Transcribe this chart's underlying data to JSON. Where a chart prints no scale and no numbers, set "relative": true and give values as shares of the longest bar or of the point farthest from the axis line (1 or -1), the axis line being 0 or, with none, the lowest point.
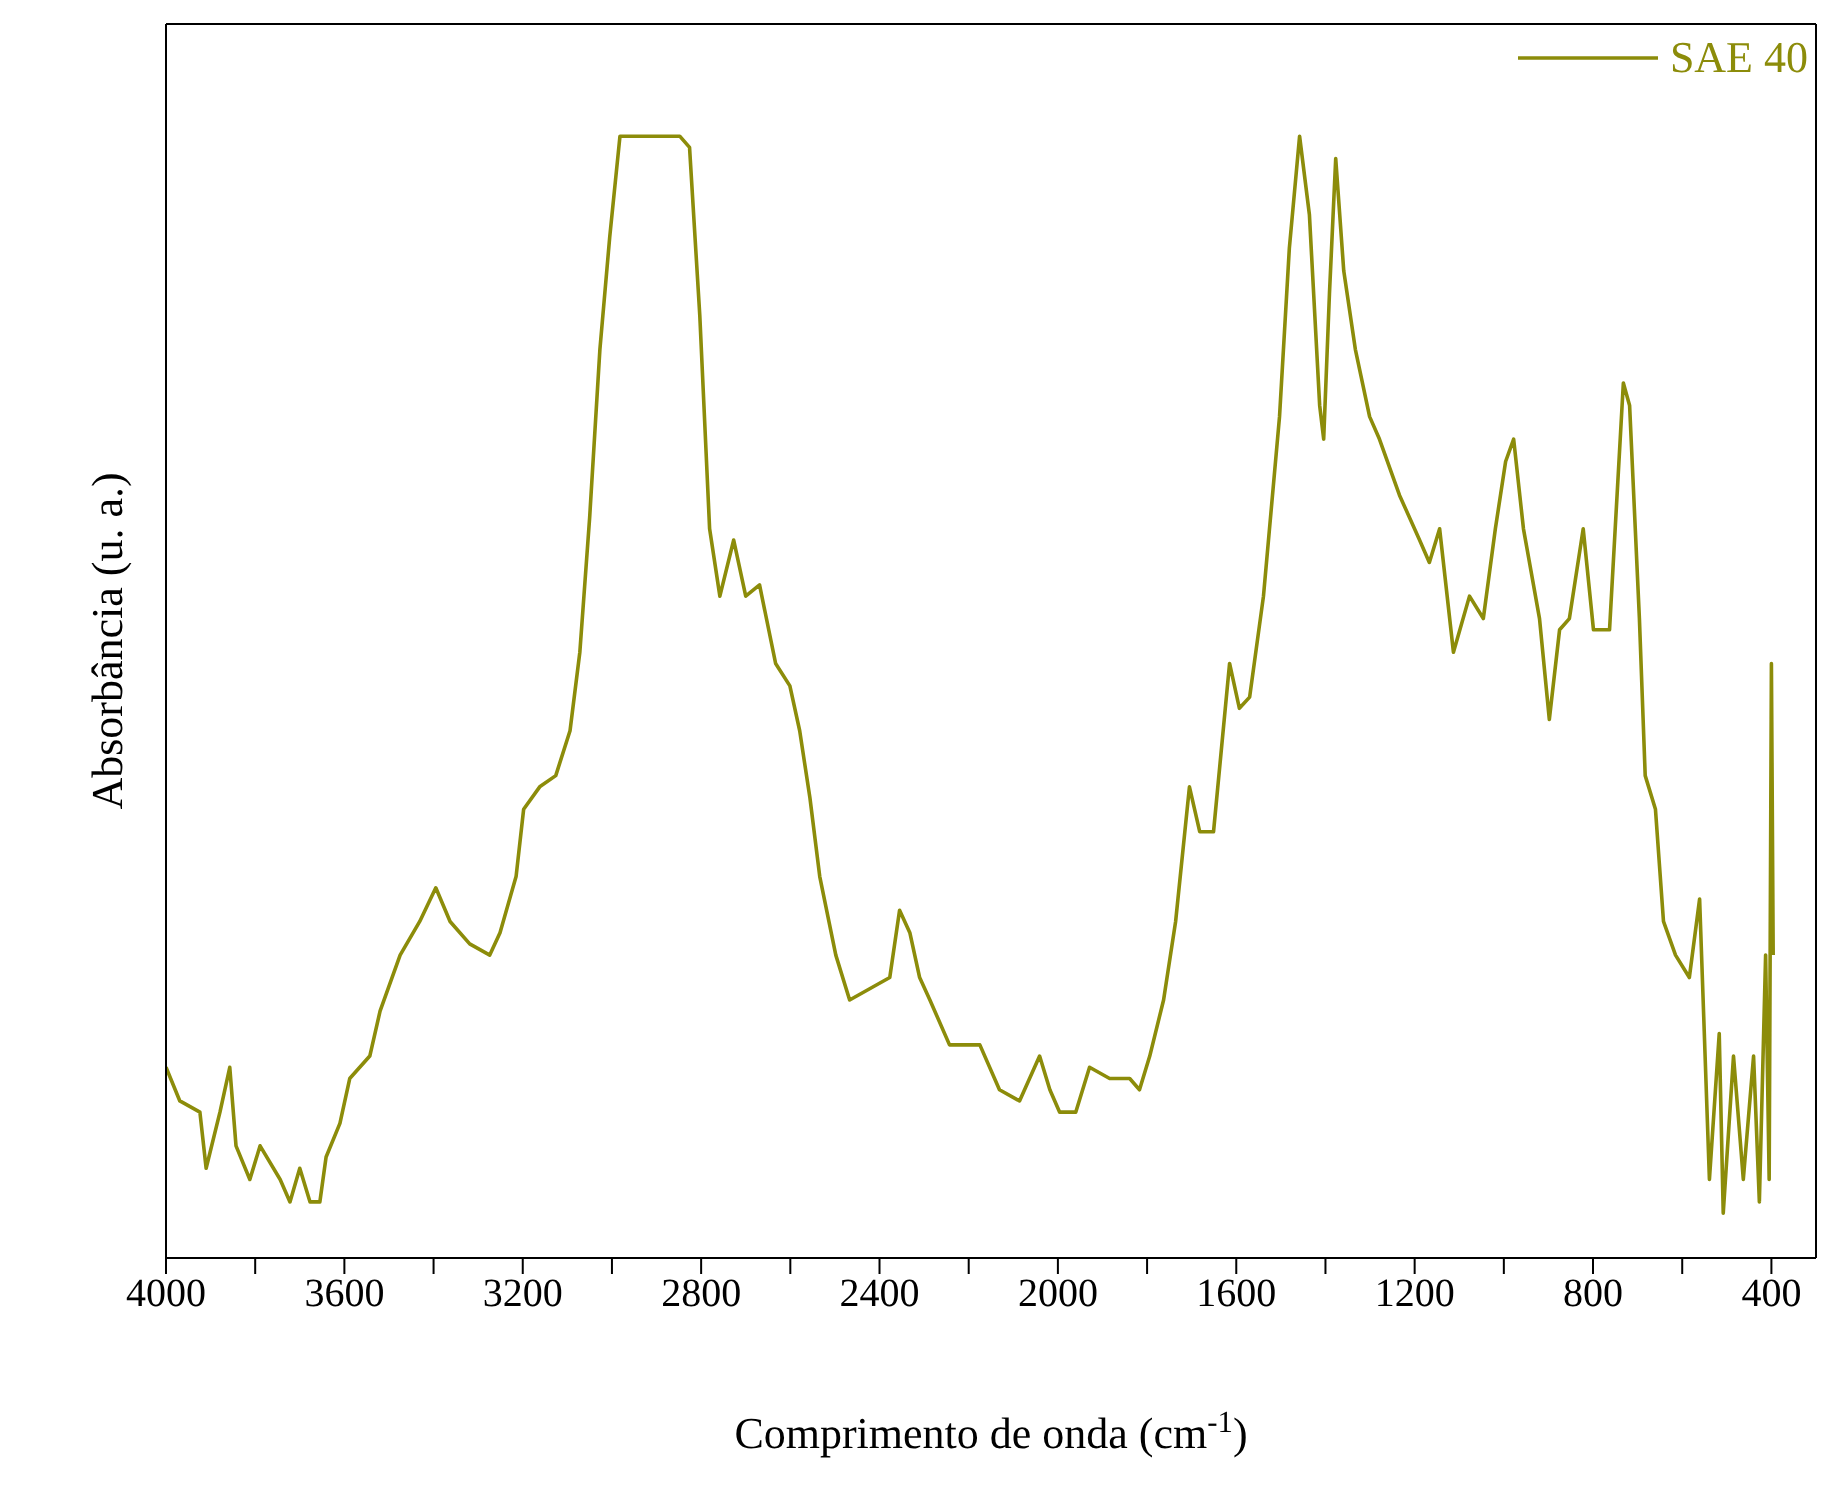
{
  "chart_data": {
    "type": "line",
    "relative": true,
    "xlabel": "Comprimento de onda (cm$^{-1}$)",
    "ylabel": "Absorbância (u. a.)",
    "xlim": [
      4000,
      300
    ],
    "xticks": [
      4000,
      {
        "value": 3800,
        "label": null
      },
      3600,
      {
        "value": 3400,
        "label": null
      },
      3200,
      {
        "value": 3000,
        "label": null
      },
      2800,
      {
        "value": 2600,
        "label": null
      },
      2400,
      {
        "value": 2200,
        "label": null
      },
      2000,
      {
        "value": 1800,
        "label": null
      },
      1600,
      {
        "value": 1400,
        "label": null
      },
      1200,
      {
        "value": 1000,
        "label": null
      },
      800,
      {
        "value": 600,
        "label": null
      },
      400
    ],
    "grid": false,
    "legend": "top right",
    "marker": "none",
    "line_style": "solid",
    "series": [
      {
        "name": "SAE 40",
        "color": "#8c8c0a",
        "x": [
          4000,
          3969,
          3924,
          3910,
          3879,
          3857,
          3843,
          3812,
          3789,
          3744,
          3722,
          3700,
          3677,
          3655,
          3641,
          3610,
          3588,
          3543,
          3520,
          3475,
          3431,
          3395,
          3363,
          3319,
          3274,
          3251,
          3215,
          3198,
          3162,
          3126,
          3094,
          3072,
          3050,
          3027,
          3005,
          2982,
          2938,
          2893,
          2848,
          2826,
          2803,
          2781,
          2758,
          2727,
          2700,
          2669,
          2633,
          2601,
          2579,
          2556,
          2534,
          2498,
          2467,
          2422,
          2377,
          2355,
          2332,
          2310,
          2287,
          2243,
          2175,
          2131,
          2086,
          2041,
          2018,
          1996,
          1960,
          1929,
          1884,
          1839,
          1817,
          1794,
          1763,
          1736,
          1705,
          1682,
          1651,
          1615,
          1593,
          1570,
          1539,
          1503,
          1481,
          1458,
          1436,
          1413,
          1404,
          1391,
          1377,
          1359,
          1333,
          1301,
          1279,
          1234,
          1189,
          1167,
          1144,
          1113,
          1077,
          1046,
          1019,
          996,
          978,
          956,
          920,
          898,
          875,
          853,
          822,
          799,
          763,
          732,
          718,
          696,
          683,
          660,
          642,
          615,
          584,
          561,
          539,
          517,
          508,
          485,
          463,
          440,
          427,
          413,
          405,
          400,
          396
        ],
        "values": [
          0.17,
          0.14,
          0.13,
          0.08,
          0.13,
          0.17,
          0.1,
          0.07,
          0.1,
          0.07,
          0.05,
          0.08,
          0.05,
          0.05,
          0.09,
          0.12,
          0.16,
          0.18,
          0.22,
          0.27,
          0.3,
          0.33,
          0.3,
          0.28,
          0.27,
          0.29,
          0.34,
          0.4,
          0.42,
          0.43,
          0.47,
          0.54,
          0.66,
          0.81,
          0.91,
          1,
          1,
          1,
          1,
          0.99,
          0.84,
          0.65,
          0.59,
          0.64,
          0.59,
          0.6,
          0.53,
          0.51,
          0.47,
          0.41,
          0.34,
          0.27,
          0.23,
          0.24,
          0.25,
          0.31,
          0.29,
          0.25,
          0.23,
          0.19,
          0.19,
          0.15,
          0.14,
          0.18,
          0.15,
          0.13,
          0.13,
          0.17,
          0.16,
          0.16,
          0.15,
          0.18,
          0.23,
          0.3,
          0.42,
          0.38,
          0.38,
          0.53,
          0.49,
          0.5,
          0.59,
          0.75,
          0.9,
          1,
          0.93,
          0.76,
          0.73,
          0.86,
          0.98,
          0.88,
          0.81,
          0.75,
          0.73,
          0.68,
          0.64,
          0.62,
          0.65,
          0.54,
          0.59,
          0.57,
          0.65,
          0.71,
          0.73,
          0.65,
          0.57,
          0.48,
          0.56,
          0.57,
          0.65,
          0.56,
          0.56,
          0.78,
          0.76,
          0.57,
          0.43,
          0.4,
          0.3,
          0.27,
          0.25,
          0.32,
          0.07,
          0.2,
          0.04,
          0.18,
          0.07,
          0.18,
          0.05,
          0.27,
          0.07,
          0.53,
          0.27
        ]
      }
    ]
  }
}
